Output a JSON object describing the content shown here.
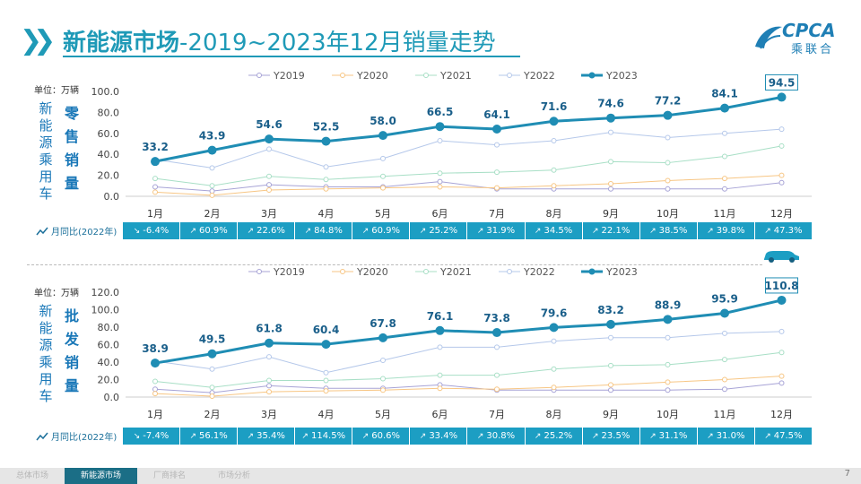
{
  "title": {
    "bold": "新能源市场",
    "rest": "-2019~2023年12月销量走势"
  },
  "logo": {
    "main": "CPCA",
    "sub": "乘联合"
  },
  "colors": {
    "Y2019": "#a7a3d6",
    "Y2020": "#f7c684",
    "Y2021": "#a8dfc6",
    "Y2022": "#b5c8ea",
    "Y2023": "#1f8db4",
    "accent": "#1c9ec3"
  },
  "charts": [
    {
      "id": "retail",
      "unit": "单位：万辆",
      "side_vertical": "新能源乘用车",
      "side_bold": "零售销量",
      "yoy_label": "月同比(2022年)",
      "yoy": [
        "-6.4%",
        "60.9%",
        "22.6%",
        "84.8%",
        "60.9%",
        "25.2%",
        "31.9%",
        "34.5%",
        "22.1%",
        "38.5%",
        "39.8%",
        "47.3%"
      ]
    },
    {
      "id": "wholesale",
      "unit": "单位：万辆",
      "side_vertical": "新能源乘用车",
      "side_bold": "批发销量",
      "yoy_label": "月同比(2022年)",
      "yoy": [
        "-7.4%",
        "56.1%",
        "35.4%",
        "114.5%",
        "60.6%",
        "33.4%",
        "30.8%",
        "25.2%",
        "23.5%",
        "31.1%",
        "31.0%",
        "47.5%"
      ]
    }
  ],
  "chart_data": [
    {
      "type": "line",
      "title": "",
      "ylabel": "",
      "ylim": [
        0,
        100
      ],
      "yticks": [
        "0.0",
        "20.0",
        "40.0",
        "60.0",
        "80.0",
        "100.0"
      ],
      "categories": [
        "1月",
        "2月",
        "3月",
        "4月",
        "5月",
        "6月",
        "7月",
        "8月",
        "9月",
        "10月",
        "11月",
        "12月"
      ],
      "legend": "top-center",
      "series": [
        {
          "name": "Y2019",
          "values": [
            9,
            5,
            11,
            9,
            9,
            14,
            7,
            7,
            7,
            7,
            7,
            13
          ]
        },
        {
          "name": "Y2020",
          "values": [
            4,
            1,
            6,
            7,
            8,
            9,
            8,
            10,
            12,
            15,
            17,
            20
          ]
        },
        {
          "name": "Y2021",
          "values": [
            17,
            10,
            19,
            16,
            19,
            22,
            23,
            25,
            33,
            32,
            38,
            48
          ]
        },
        {
          "name": "Y2022",
          "values": [
            35,
            27,
            45,
            28,
            36,
            53,
            49,
            53,
            61,
            56,
            60,
            64
          ]
        },
        {
          "name": "Y2023",
          "values": [
            33.2,
            43.9,
            54.6,
            52.5,
            58.0,
            66.5,
            64.1,
            71.6,
            74.6,
            77.2,
            84.1,
            94.5
          ]
        }
      ],
      "data_labels": [
        "33.2",
        "43.9",
        "54.6",
        "52.5",
        "58.0",
        "66.5",
        "64.1",
        "71.6",
        "74.6",
        "77.2",
        "84.1",
        "94.5"
      ]
    },
    {
      "type": "line",
      "title": "",
      "ylabel": "",
      "ylim": [
        0,
        120
      ],
      "yticks": [
        "0.0",
        "20.0",
        "40.0",
        "60.0",
        "80.0",
        "100.0",
        "120.0"
      ],
      "categories": [
        "1月",
        "2月",
        "3月",
        "4月",
        "5月",
        "6月",
        "7月",
        "8月",
        "9月",
        "10月",
        "11月",
        "12月"
      ],
      "legend": "top-center",
      "series": [
        {
          "name": "Y2019",
          "values": [
            9,
            5,
            13,
            10,
            10,
            14,
            8,
            8,
            8,
            8,
            9,
            16
          ]
        },
        {
          "name": "Y2020",
          "values": [
            4,
            1,
            6,
            7,
            8,
            10,
            9,
            11,
            14,
            17,
            20,
            24
          ]
        },
        {
          "name": "Y2021",
          "values": [
            18,
            11,
            19,
            19,
            21,
            25,
            25,
            32,
            36,
            37,
            43,
            51
          ]
        },
        {
          "name": "Y2022",
          "values": [
            41,
            32,
            46,
            28,
            42,
            57,
            57,
            64,
            68,
            68,
            73,
            75
          ]
        },
        {
          "name": "Y2023",
          "values": [
            38.9,
            49.5,
            61.8,
            60.4,
            67.8,
            76.1,
            73.8,
            79.6,
            83.2,
            88.9,
            95.9,
            110.8
          ]
        }
      ],
      "data_labels": [
        "38.9",
        "49.5",
        "61.8",
        "60.4",
        "67.8",
        "76.1",
        "73.8",
        "79.6",
        "83.2",
        "88.9",
        "95.9",
        "110.8"
      ]
    }
  ],
  "footer": {
    "tabs": [
      "总体市场",
      "新能源市场",
      "厂商排名",
      "市场分析"
    ],
    "active": 1,
    "page": "7"
  }
}
